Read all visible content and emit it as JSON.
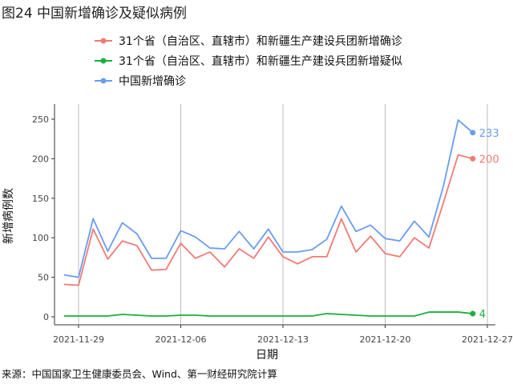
{
  "title": "图24 中国新增确诊及疑似病例",
  "source": "来源：中国国家卫生健康委员会、Wind、第一财经研究院计算",
  "chart_data": {
    "type": "line",
    "title": "图24 中国新增确诊及疑似病例",
    "xlabel": "日期",
    "ylabel": "新增病例数",
    "ylim": [
      0,
      260
    ],
    "yticks": [
      0,
      50,
      100,
      150,
      200,
      250
    ],
    "xticks": [
      "2021-11-29",
      "2021-12-06",
      "2021-12-13",
      "2021-12-20",
      "2021-12-27"
    ],
    "grid": "vertical-major",
    "legend_position": "top",
    "x": [
      "2021-11-28",
      "2021-11-29",
      "2021-11-30",
      "2021-12-01",
      "2021-12-02",
      "2021-12-03",
      "2021-12-04",
      "2021-12-05",
      "2021-12-06",
      "2021-12-07",
      "2021-12-08",
      "2021-12-09",
      "2021-12-10",
      "2021-12-11",
      "2021-12-12",
      "2021-12-13",
      "2021-12-14",
      "2021-12-15",
      "2021-12-16",
      "2021-12-17",
      "2021-12-18",
      "2021-12-19",
      "2021-12-20",
      "2021-12-21",
      "2021-12-22",
      "2021-12-23",
      "2021-12-24",
      "2021-12-25",
      "2021-12-26"
    ],
    "series": [
      {
        "name": "31个省（自治区、直辖市）和新疆生产建设兵团新增确诊",
        "color": "#F07B75",
        "end_label": "200",
        "values": [
          41,
          40,
          111,
          73,
          96,
          90,
          59,
          60,
          93,
          74,
          82,
          63,
          86,
          74,
          101,
          76,
          67,
          76,
          76,
          124,
          82,
          102,
          80,
          76,
          100,
          87,
          145,
          205,
          200
        ]
      },
      {
        "name": "31个省（自治区、直辖市）和新疆生产建设兵团新增疑似",
        "color": "#1AAF3F",
        "end_label": "4",
        "values": [
          1,
          1,
          1,
          1,
          3,
          2,
          1,
          1,
          2,
          2,
          1,
          1,
          1,
          1,
          1,
          1,
          1,
          1,
          4,
          3,
          2,
          1,
          1,
          1,
          1,
          6,
          6,
          6,
          4
        ]
      },
      {
        "name": "中国新增确诊",
        "color": "#6A9CF0",
        "end_label": "233",
        "values": [
          53,
          50,
          124,
          83,
          119,
          105,
          74,
          74,
          109,
          101,
          87,
          86,
          108,
          86,
          111,
          82,
          82,
          85,
          98,
          140,
          108,
          116,
          99,
          96,
          121,
          101,
          166,
          249,
          233
        ]
      }
    ]
  }
}
